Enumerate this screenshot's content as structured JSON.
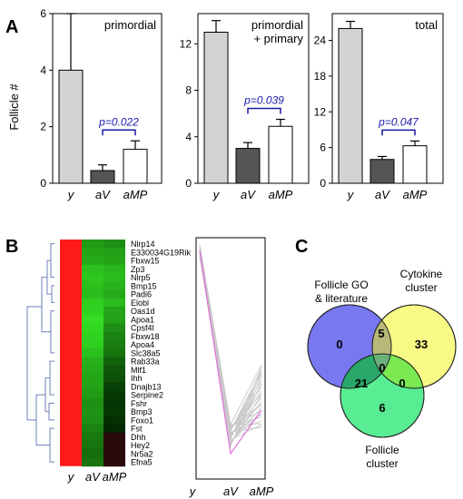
{
  "panels": {
    "A": "A",
    "B": "B",
    "C": "C"
  },
  "colors": {
    "young_bar": "#d3d3d3",
    "av_bar": "#555555",
    "amp_bar": "#ffffff",
    "pvalue": "#1a1aa8",
    "heat_red": "#ff1a1a",
    "dendrogram": "#6f7fb8",
    "trend_gray": "#c8c8c8",
    "trend_highlight": "#e070d8",
    "venn_go": "#7878f0",
    "venn_cytokine": "#f8f870",
    "venn_follicle": "#30e878"
  },
  "chart_data": [
    {
      "type": "bar",
      "title": "primordial",
      "ylabel": "Follicle #",
      "categories": [
        "y",
        "aV",
        "aMP"
      ],
      "values": [
        4.0,
        0.45,
        1.2
      ],
      "errors": [
        2.0,
        0.2,
        0.3
      ],
      "ylim": [
        0,
        6
      ],
      "yticks": [
        "0",
        "2",
        "4",
        "6"
      ],
      "pvalue": "p=0.022"
    },
    {
      "type": "bar",
      "title": "primordial",
      "title2": "+ primary",
      "categories": [
        "y",
        "aV",
        "aMP"
      ],
      "values": [
        13.0,
        3.0,
        4.9
      ],
      "errors": [
        1.0,
        0.5,
        0.6
      ],
      "ylim": [
        0,
        14.6
      ],
      "yticks": [
        "0",
        "4",
        "8",
        "12"
      ],
      "pvalue": "p=0.039"
    },
    {
      "type": "bar",
      "title": "total",
      "categories": [
        "y",
        "aV",
        "aMP"
      ],
      "values": [
        26.0,
        4.0,
        6.3
      ],
      "errors": [
        1.2,
        0.5,
        0.8
      ],
      "ylim": [
        0,
        28.5
      ],
      "yticks": [
        "0",
        "6",
        "12",
        "18",
        "24"
      ],
      "pvalue": "p=0.047"
    }
  ],
  "heatmap": {
    "columns": [
      "y",
      "aV",
      "aMP"
    ],
    "genes": [
      "Nlrp14",
      "E330034G19Rik",
      "Fbxw15",
      "Zp3",
      "Nlrp5",
      "Bmp15",
      "Padi6",
      "Elobl",
      "Oas1d",
      "Apoa1",
      "Cpsf4l",
      "Fbxw18",
      "Apoa4",
      "Slc38a5",
      "Rab33a",
      "Mlf1",
      "Ihh",
      "Dnajb13",
      "Serpine2",
      "Fshr",
      "Bmp3",
      "Foxo1",
      "Fst",
      "Dhh",
      "Hey2",
      "Nr5a2",
      "Efna5"
    ],
    "av_green": [
      0.55,
      0.6,
      0.62,
      0.72,
      0.75,
      0.72,
      0.7,
      0.78,
      0.8,
      0.85,
      0.82,
      0.8,
      0.78,
      0.72,
      0.65,
      0.62,
      0.6,
      0.58,
      0.55,
      0.5,
      0.52,
      0.5,
      0.45,
      0.4,
      0.38,
      0.35,
      0.38
    ],
    "amp_green": [
      0.5,
      0.58,
      0.6,
      0.68,
      0.7,
      0.66,
      0.62,
      0.7,
      0.6,
      0.58,
      0.5,
      0.45,
      0.42,
      0.38,
      0.3,
      0.25,
      0.22,
      0.15,
      0.12,
      0.1,
      0.12,
      0.08,
      0.05,
      0.0,
      0.02,
      0.0,
      0.03
    ]
  },
  "trend": {
    "x_labels": [
      "y",
      "aV",
      "aMP"
    ]
  },
  "venn": {
    "sets": {
      "go": "Follicle GO",
      "go2": "& literature",
      "cytokine": "Cytokine",
      "cytokine2": "cluster",
      "follicle": "Follicle",
      "follicle2": "cluster"
    },
    "counts": {
      "go_only": "0",
      "cytokine_only": "33",
      "follicle_only": "6",
      "go_cytokine": "5",
      "go_follicle": "21",
      "cytokine_follicle": "0",
      "all": "0"
    }
  }
}
